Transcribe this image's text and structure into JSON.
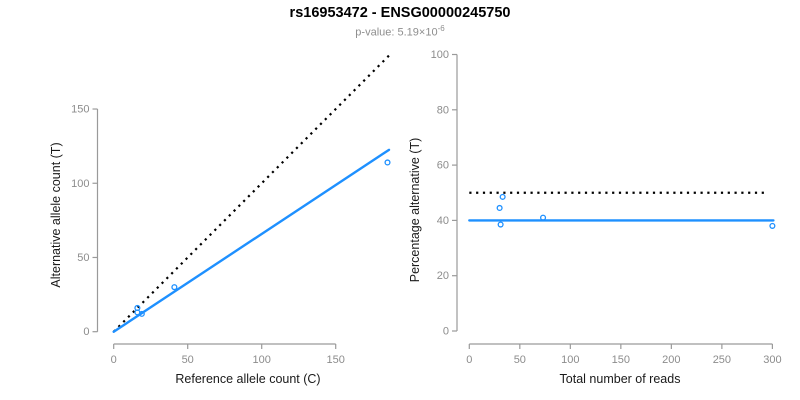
{
  "header": {
    "title": "rs16953472 - ENSG00000245750",
    "subtitle_prefix": "p-value: 5.19×10",
    "subtitle_exponent": "-6"
  },
  "colors": {
    "accent_blue": "#1E90FF",
    "dotted_black": "#000000",
    "axis_line": "#9a9a9a",
    "tick_label": "#8c8c8c",
    "axis_title": "#1a1a1a",
    "title": "#000000",
    "subtitle": "#8e8e8e"
  },
  "chart_data": [
    {
      "id": "allele-counts",
      "type": "scatter",
      "title": "",
      "xlabel": "Reference allele count (C)",
      "ylabel": "Alternative allele count (T)",
      "xlim": [
        0,
        187
      ],
      "ylim": [
        0,
        187
      ],
      "xticks": [
        0,
        50,
        100,
        150
      ],
      "yticks": [
        0,
        50,
        100,
        150
      ],
      "grid": false,
      "legend": "none",
      "points": [
        {
          "x": 16,
          "y": 16
        },
        {
          "x": 16,
          "y": 13
        },
        {
          "x": 19,
          "y": 12
        },
        {
          "x": 41,
          "y": 30
        },
        {
          "x": 185,
          "y": 114
        }
      ],
      "lines": [
        {
          "name": "identity-line",
          "style": "dotted",
          "color": "#000000",
          "x1": 0,
          "y1": 0,
          "x2": 187,
          "y2": 187
        },
        {
          "name": "fit-line",
          "style": "solid",
          "color": "#1E90FF",
          "x1": 0,
          "y1": 0,
          "x2": 186,
          "y2": 122.5
        }
      ]
    },
    {
      "id": "percentage-by-reads",
      "type": "scatter",
      "title": "",
      "xlabel": "Total number of reads",
      "ylabel": "Percentage alternative (T)",
      "xlim": [
        0,
        312
      ],
      "ylim": [
        0,
        100
      ],
      "xticks": [
        0,
        50,
        100,
        150,
        200,
        250,
        300
      ],
      "yticks": [
        0,
        20,
        40,
        60,
        80,
        100
      ],
      "grid": false,
      "legend": "none",
      "points": [
        {
          "x": 33,
          "y": 48.5
        },
        {
          "x": 30,
          "y": 44.5
        },
        {
          "x": 31,
          "y": 38.5
        },
        {
          "x": 73,
          "y": 41
        },
        {
          "x": 300,
          "y": 38
        }
      ],
      "lines": [
        {
          "name": "expected-50pct-line",
          "style": "dotted",
          "color": "#000000",
          "x1": 0,
          "y1": 50,
          "x2": 296,
          "y2": 50
        },
        {
          "name": "fit-line",
          "style": "solid",
          "color": "#1E90FF",
          "x1": 0,
          "y1": 40,
          "x2": 301,
          "y2": 40
        }
      ]
    }
  ]
}
